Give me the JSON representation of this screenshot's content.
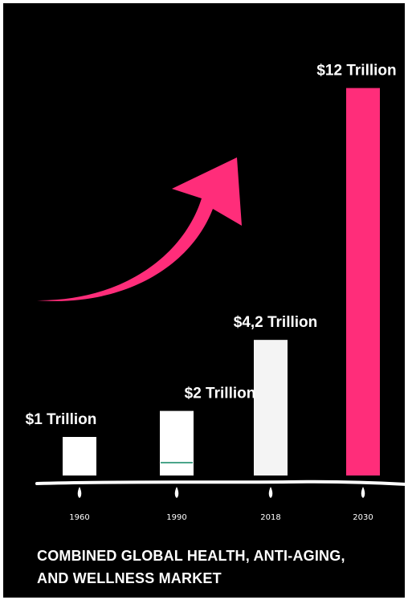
{
  "colors": {
    "background": "#000000",
    "bar_default": "#ffffff",
    "bar_highlight": "#ff2d7a",
    "arrow": "#ff2d7a",
    "accent_line": "#4aa58a"
  },
  "caption": {
    "line1": "COMBINED GLOBAL HEALTH, ANTI-AGING,",
    "line2": "AND WELLNESS MARKET"
  },
  "arrow_icon": "curved-up-arrow",
  "chart_data": {
    "type": "bar",
    "title": "",
    "xlabel": "",
    "ylabel": "",
    "categories": [
      "1960",
      "1990",
      "2018",
      "2030"
    ],
    "values": [
      1,
      2,
      4.2,
      12
    ],
    "unit": "Trillion",
    "data_labels": [
      "$1 Trillion",
      "$2 Trillion",
      "$4,2 Trillion",
      "$12 Trillion"
    ],
    "bar_colors": [
      "#ffffff",
      "#ffffff",
      "#f4f4f4",
      "#ff2d7a"
    ],
    "ylim": [
      0,
      12
    ],
    "grid": false,
    "legend": "none"
  }
}
